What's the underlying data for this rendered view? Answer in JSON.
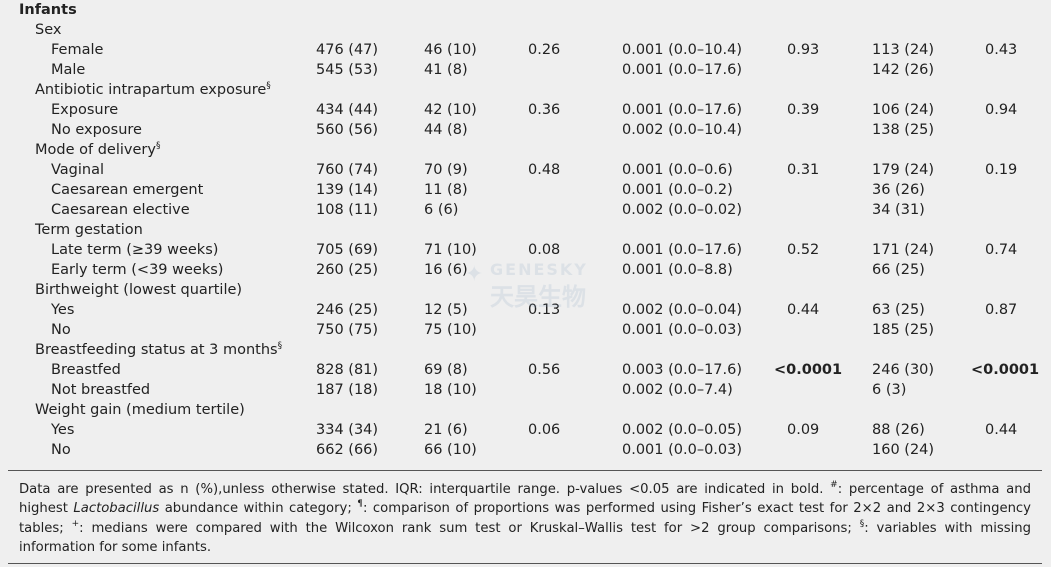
{
  "section_title": "Infants",
  "rows": [
    {
      "type": "group",
      "label": "Sex",
      "sup": ""
    },
    {
      "type": "item",
      "label": "Female",
      "c1": "476 (47)",
      "c2": "46 (10)",
      "c3": "0.26",
      "c4": "0.001 (0.0–10.4)",
      "c5": "0.93",
      "c5_bold": false,
      "c6": "113 (24)",
      "c7": "0.43",
      "c7_bold": false
    },
    {
      "type": "item",
      "label": "Male",
      "c1": "545 (53)",
      "c2": "41 (8)",
      "c3": "",
      "c4": "0.001 (0.0–17.6)",
      "c5": "",
      "c5_bold": false,
      "c6": "142 (26)",
      "c7": "",
      "c7_bold": false
    },
    {
      "type": "group",
      "label": "Antibiotic intrapartum exposure",
      "sup": "§"
    },
    {
      "type": "item",
      "label": "Exposure",
      "c1": "434 (44)",
      "c2": "42 (10)",
      "c3": "0.36",
      "c4": "0.001 (0.0–17.6)",
      "c5": "0.39",
      "c5_bold": false,
      "c6": "106 (24)",
      "c7": "0.94",
      "c7_bold": false
    },
    {
      "type": "item",
      "label": "No exposure",
      "c1": "560 (56)",
      "c2": "44 (8)",
      "c3": "",
      "c4": "0.002 (0.0–10.4)",
      "c5": "",
      "c5_bold": false,
      "c6": "138 (25)",
      "c7": "",
      "c7_bold": false
    },
    {
      "type": "group",
      "label": "Mode of delivery",
      "sup": "§"
    },
    {
      "type": "item",
      "label": "Vaginal",
      "c1": "760 (74)",
      "c2": "70 (9)",
      "c3": "0.48",
      "c4": "0.001 (0.0–0.6)",
      "c5": "0.31",
      "c5_bold": false,
      "c6": "179 (24)",
      "c7": "0.19",
      "c7_bold": false
    },
    {
      "type": "item",
      "label": "Caesarean emergent",
      "c1": "139 (14)",
      "c2": "11 (8)",
      "c3": "",
      "c4": "0.001 (0.0–0.2)",
      "c5": "",
      "c5_bold": false,
      "c6": "36 (26)",
      "c7": "",
      "c7_bold": false
    },
    {
      "type": "item",
      "label": "Caesarean elective",
      "c1": "108 (11)",
      "c2": "6 (6)",
      "c3": "",
      "c4": "0.002 (0.0–0.02)",
      "c5": "",
      "c5_bold": false,
      "c6": "34 (31)",
      "c7": "",
      "c7_bold": false
    },
    {
      "type": "group",
      "label": "Term gestation",
      "sup": ""
    },
    {
      "type": "item",
      "label": "Late term (≥39 weeks)",
      "c1": "705 (69)",
      "c2": "71 (10)",
      "c3": "0.08",
      "c4": "0.001 (0.0–17.6)",
      "c5": "0.52",
      "c5_bold": false,
      "c6": "171 (24)",
      "c7": "0.74",
      "c7_bold": false
    },
    {
      "type": "item",
      "label": "Early term (<39 weeks)",
      "c1": "260 (25)",
      "c2": "16 (6)",
      "c3": "",
      "c4": "0.001 (0.0–8.8)",
      "c5": "",
      "c5_bold": false,
      "c6": "66 (25)",
      "c7": "",
      "c7_bold": false
    },
    {
      "type": "group",
      "label": "Birthweight (lowest quartile)",
      "sup": ""
    },
    {
      "type": "item",
      "label": "Yes",
      "c1": "246 (25)",
      "c2": "12 (5)",
      "c3": "0.13",
      "c4": "0.002 (0.0–0.04)",
      "c5": "0.44",
      "c5_bold": false,
      "c6": "63 (25)",
      "c7": "0.87",
      "c7_bold": false
    },
    {
      "type": "item",
      "label": "No",
      "c1": "750 (75)",
      "c2": "75 (10)",
      "c3": "",
      "c4": "0.001 (0.0–0.03)",
      "c5": "",
      "c5_bold": false,
      "c6": "185 (25)",
      "c7": "",
      "c7_bold": false
    },
    {
      "type": "group",
      "label": "Breastfeeding status at 3 months",
      "sup": "§"
    },
    {
      "type": "item",
      "label": "Breastfed",
      "c1": "828 (81)",
      "c2": "69 (8)",
      "c3": "0.56",
      "c4": "0.003 (0.0–17.6)",
      "c5": "<0.0001",
      "c5_bold": true,
      "c6": "246 (30)",
      "c7": "<0.0001",
      "c7_bold": true
    },
    {
      "type": "item",
      "label": "Not breastfed",
      "c1": "187 (18)",
      "c2": "18 (10)",
      "c3": "",
      "c4": "0.002 (0.0–7.4)",
      "c5": "",
      "c5_bold": false,
      "c6": "6 (3)",
      "c7": "",
      "c7_bold": false
    },
    {
      "type": "group",
      "label": "Weight gain (medium tertile)",
      "sup": ""
    },
    {
      "type": "item",
      "label": "Yes",
      "c1": "334 (34)",
      "c2": "21 (6)",
      "c3": "0.06",
      "c4": "0.002 (0.0–0.05)",
      "c5": "0.09",
      "c5_bold": false,
      "c6": "88 (26)",
      "c7": "0.44",
      "c7_bold": false
    },
    {
      "type": "item",
      "label": "No",
      "c1": "662 (66)",
      "c2": "66 (10)",
      "c3": "",
      "c4": "0.001 (0.0–0.03)",
      "c5": "",
      "c5_bold": false,
      "c6": "160 (24)",
      "c7": "",
      "c7_bold": false
    }
  ],
  "footnote": {
    "p1": "Data are presented as n (%),unless otherwise stated. IQR: interquartile range. p-values <0.05 are indicated in bold. ",
    "sup1": "#",
    "p2": ": percentage of asthma and highest ",
    "italic": "Lactobacillus",
    "p3": " abundance within category; ",
    "sup2": "¶",
    "p4": ": comparison of proportions was performed using Fisher’s exact test for 2×2 and 2×3 contingency tables; ",
    "sup3": "+",
    "p5": ": medians were compared with the Wilcoxon rank sum test or Kruskal–Wallis test for >2 group comparisons; ",
    "sup4": "§",
    "p6": ": variables with missing information for some infants."
  },
  "watermark": {
    "en": "GENESKY",
    "cn": "天昊生物"
  }
}
